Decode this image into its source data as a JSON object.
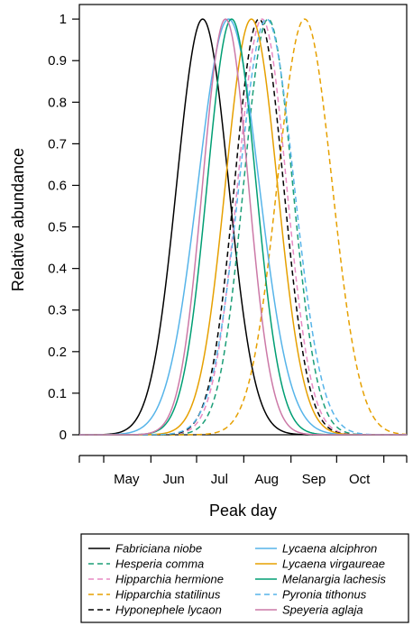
{
  "chart_data": {
    "type": "line",
    "xlabel": "Peak day",
    "ylabel": "Relative abundance",
    "x_unit": "day of year",
    "x_range": [
      105,
      320
    ],
    "xlim": [
      105,
      320
    ],
    "ylim": [
      0,
      1.035
    ],
    "y_ticks": [
      0,
      0.1,
      0.2,
      0.3,
      0.4,
      0.5,
      0.6,
      0.7,
      0.8,
      0.9,
      1
    ],
    "y_tick_labels": [
      "0",
      "0.1",
      "0.2",
      "0.3",
      "0.4",
      "0.5",
      "0.6",
      "0.7",
      "0.8",
      "0.9",
      "1"
    ],
    "x_month_boundaries": [
      105,
      121,
      152,
      182,
      213,
      244,
      274,
      305,
      320
    ],
    "x_tick_labels": [
      {
        "label": "May",
        "x": 136
      },
      {
        "label": "Jun",
        "x": 167
      },
      {
        "label": "Jul",
        "x": 197
      },
      {
        "label": "Aug",
        "x": 228
      },
      {
        "label": "Sep",
        "x": 259
      },
      {
        "label": "Oct",
        "x": 289
      }
    ],
    "curve_shape": "gaussian, peak = 1",
    "legend_position": "below plot, two columns",
    "series": [
      {
        "name": "Fabriciana niobe",
        "peak_day": 186,
        "sd": 17,
        "color": "#000000",
        "dash": "solid"
      },
      {
        "name": "Hesperia comma",
        "peak_day": 229,
        "sd": 16,
        "color": "#1b9e77",
        "dash": "dashed"
      },
      {
        "name": "Hipparchia hermione",
        "peak_day": 225,
        "sd": 16,
        "color": "#e78ac3",
        "dash": "dashed"
      },
      {
        "name": "Hipparchia statilinus",
        "peak_day": 253,
        "sd": 18,
        "color": "#e6a000",
        "dash": "dashed"
      },
      {
        "name": "Hyponephele lycaon",
        "peak_day": 223,
        "sd": 16,
        "color": "#000000",
        "dash": "dashed"
      },
      {
        "name": "Lycaena alciphron",
        "peak_day": 203,
        "sd": 20,
        "color": "#56b4e9",
        "dash": "solid"
      },
      {
        "name": "Lycaena virgaureae",
        "peak_day": 218,
        "sd": 17,
        "color": "#e6a000",
        "dash": "solid"
      },
      {
        "name": "Melanargia lachesis",
        "peak_day": 205,
        "sd": 16,
        "color": "#009e73",
        "dash": "solid"
      },
      {
        "name": "Pyronia tithonus",
        "peak_day": 228,
        "sd": 18,
        "color": "#56b4e9",
        "dash": "dashed"
      },
      {
        "name": "Speyeria aglaja",
        "peak_day": 201,
        "sd": 15,
        "color": "#cc79a7",
        "dash": "solid"
      }
    ]
  }
}
